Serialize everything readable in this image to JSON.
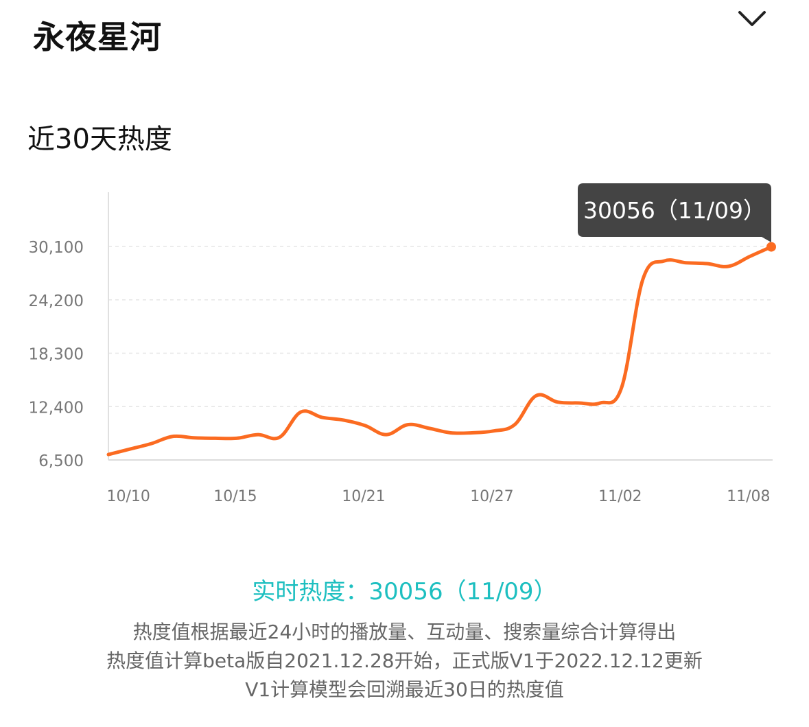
{
  "header": {
    "title": "永夜星河",
    "collapse_icon": "chevron-down-icon"
  },
  "section": {
    "title": "近30天热度"
  },
  "chart_data": {
    "type": "line",
    "ylim": [
      6500,
      30100
    ],
    "yticks": [
      "30,100",
      "24,200",
      "18,300",
      "12,400",
      "6,500"
    ],
    "ytick_values": [
      30100,
      24200,
      18300,
      12400,
      6500
    ],
    "xtick_labels": [
      "10/10",
      "10/15",
      "10/21",
      "10/27",
      "11/02",
      "11/08"
    ],
    "x": [
      "10/09",
      "10/10",
      "10/11",
      "10/12",
      "10/13",
      "10/14",
      "10/15",
      "10/16",
      "10/17",
      "10/18",
      "10/19",
      "10/20",
      "10/21",
      "10/22",
      "10/23",
      "10/24",
      "10/25",
      "10/26",
      "10/27",
      "10/28",
      "10/29",
      "10/30",
      "10/31",
      "11/01",
      "11/02",
      "11/03",
      "11/04",
      "11/05",
      "11/06",
      "11/07",
      "11/08",
      "11/09"
    ],
    "values": [
      7100,
      7700,
      8300,
      9100,
      8950,
      8900,
      8900,
      9300,
      9000,
      11800,
      11200,
      10900,
      10300,
      9300,
      10400,
      10000,
      9500,
      9500,
      9700,
      10400,
      13600,
      12900,
      12800,
      12800,
      14500,
      26500,
      28500,
      28300,
      28200,
      27900,
      29000,
      30056
    ],
    "series_color": "#fb6b21",
    "grid": true,
    "tooltip": {
      "label": "30056（11/09）",
      "x": "11/09",
      "value": 30056
    }
  },
  "footer": {
    "realtime_label": "实时热度：",
    "realtime_value": "30056（11/09）",
    "note_lines": [
      "热度值根据最近24小时的播放量、互动量、搜索量综合计算得出",
      "热度值计算beta版自2021.12.28开始，正式版V1于2022.12.12更新",
      "V1计算模型会回溯最近30日的热度值"
    ]
  }
}
